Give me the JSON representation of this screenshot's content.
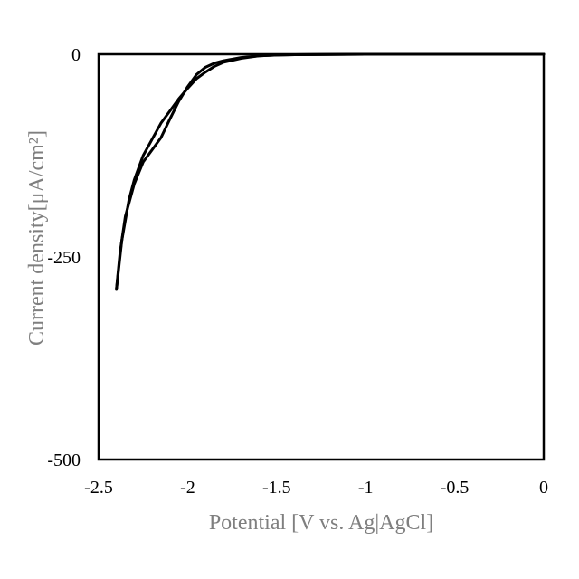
{
  "chart_data": {
    "type": "line",
    "title": "",
    "xlabel": "Potential [V vs. Ag|AgCl]",
    "ylabel": "Current density[μA/cm²]",
    "xlim": [
      -2.5,
      0
    ],
    "ylim": [
      -500,
      0
    ],
    "xticks": [
      -2.5,
      -2,
      -1.5,
      -1,
      -0.5,
      0
    ],
    "xtick_labels": [
      "-2.5",
      "-2",
      "-1.5",
      "-1",
      "-0.5",
      "0"
    ],
    "yticks": [
      -500,
      -250,
      0
    ],
    "ytick_labels": [
      "-500",
      "-250",
      "0"
    ],
    "grid": false,
    "legend": "none",
    "line_color": "#000000",
    "axis_label_color": "#7f7f7f",
    "series": [
      {
        "x": [
          -2.4,
          -2.37,
          -2.33,
          -2.3,
          -2.25,
          -2.2,
          -2.15,
          -2.1,
          -2.05,
          -2.0,
          -1.95,
          -1.9,
          -1.85,
          -1.8,
          -1.7,
          -1.6,
          -1.5,
          -1.4,
          -1.0,
          -0.5,
          0
        ],
        "y": [
          -290,
          -230,
          -180,
          -155,
          -125,
          -105,
          -85,
          -70,
          -55,
          -42,
          -30,
          -22,
          -15,
          -10,
          -5,
          -2,
          -1,
          -0.5,
          0,
          0,
          0
        ]
      },
      {
        "x": [
          -2.4,
          -2.38,
          -2.35,
          -2.3,
          -2.25,
          -2.2,
          -2.15,
          -2.1,
          -2.05,
          -2.0,
          -1.95,
          -1.9,
          -1.85,
          -1.8,
          -1.7,
          -1.6,
          -1.5,
          -1.4,
          -1.0,
          -0.5,
          0
        ],
        "y": [
          -290,
          -245,
          -200,
          -160,
          -133,
          -118,
          -103,
          -80,
          -58,
          -40,
          -25,
          -16,
          -11,
          -8,
          -4,
          -2,
          -1,
          -0.5,
          0,
          0,
          0
        ]
      }
    ]
  }
}
